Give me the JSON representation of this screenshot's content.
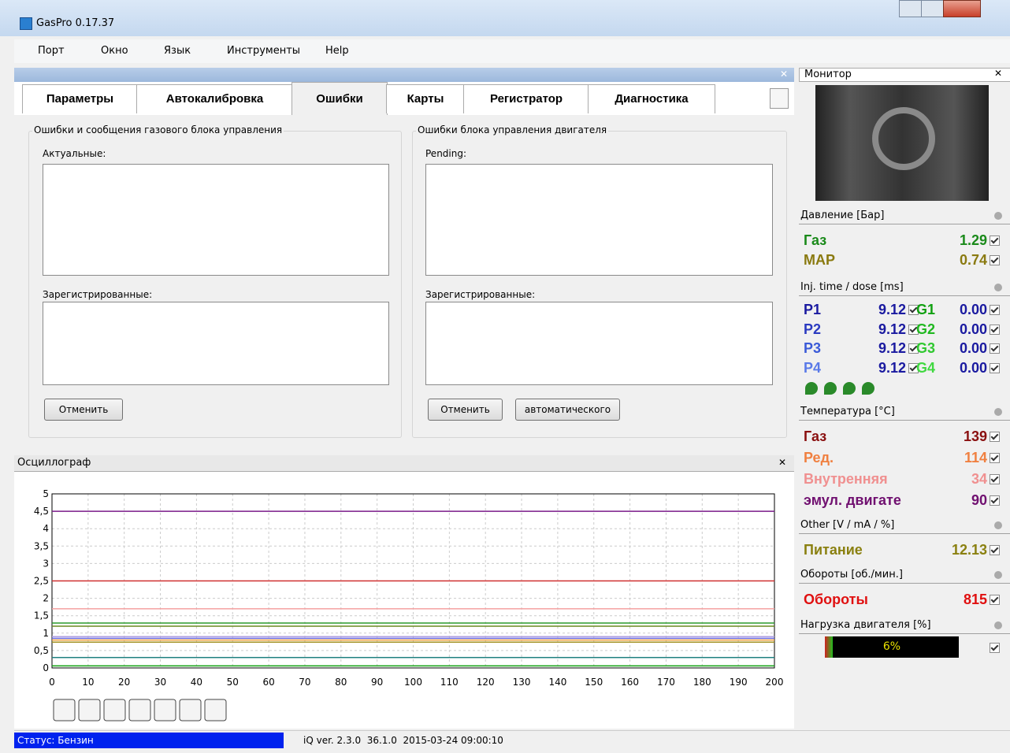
{
  "window": {
    "title": "GasPro 0.17.37"
  },
  "menu": [
    "Порт",
    "Окно",
    "Язык",
    "Инструменты",
    "Help"
  ],
  "tabs": [
    "Параметры",
    "Автокалибровка",
    "Ошибки",
    "Карты",
    "Регистратор",
    "Диагностика"
  ],
  "selected_tab": 2,
  "errors": {
    "gas": {
      "title": "Ошибки и сообщения газового блока управления",
      "current_label": "Актуальные:",
      "registered_label": "Зарегистрированные:",
      "buttons": [
        "Отменить"
      ]
    },
    "engine": {
      "title": "Ошибки блока управления двигателя",
      "current_label": "Pending:",
      "registered_label": "Зарегистрированные:",
      "buttons": [
        "Отменить",
        "автоматического"
      ]
    }
  },
  "oscilloscope": {
    "title": "Осциллограф",
    "xlim": [
      0,
      200
    ],
    "ylim": [
      0,
      5
    ],
    "xticks": [
      0,
      10,
      20,
      30,
      40,
      50,
      60,
      70,
      80,
      90,
      100,
      110,
      120,
      130,
      140,
      150,
      160,
      170,
      180,
      190,
      200
    ],
    "yticks": [
      0,
      {
        "value": 0.5,
        "label": "0,5"
      },
      1,
      {
        "value": 1.5,
        "label": "1,5"
      },
      2,
      {
        "value": 2.5,
        "label": "2,5"
      },
      3,
      {
        "value": 3.5,
        "label": "3,5"
      },
      4,
      {
        "value": 4.5,
        "label": "4,5"
      },
      5
    ],
    "lines": [
      {
        "color": "#7a1a8a",
        "value": 4.5
      },
      {
        "color": "#d03030",
        "value": 2.5
      },
      {
        "color": "#f4a0a0",
        "value": 1.7
      },
      {
        "color": "#2a9a2a",
        "value": 1.29
      },
      {
        "color": "#6a8a20",
        "value": 1.2
      },
      {
        "color": "#b0a0e0",
        "value": 0.9
      },
      {
        "color": "#6a6ae0",
        "value": 0.85
      },
      {
        "color": "#f0a040",
        "value": 0.8
      },
      {
        "color": "#a09020",
        "value": 0.74
      },
      {
        "color": "#208080",
        "value": 0.3
      },
      {
        "color": "#10a010",
        "value": 0.06
      }
    ]
  },
  "status": {
    "state": "Статус: Бензин",
    "version": "iQ ver. 2.3.0  36.1.0  2015-03-24 09:00:10"
  },
  "monitor": {
    "title": "Монитор",
    "sections": [
      {
        "title": "Давление [Бар]",
        "rows": [
          {
            "name": "Газ",
            "value": "1.29",
            "color": "#1a8a1a"
          },
          {
            "name": "MAP",
            "value": "0.74",
            "color": "#8a7a10"
          }
        ]
      },
      {
        "title": "Inj. time / dose [ms]",
        "pairs": [
          [
            {
              "name": "P1",
              "value": "9.12",
              "color": "#1a1aa0"
            },
            {
              "name": "G1",
              "value": "0.00",
              "color": "#10a010"
            }
          ],
          [
            {
              "name": "P2",
              "value": "9.12",
              "color": "#2a3ac0"
            },
            {
              "name": "G2",
              "value": "0.00",
              "color": "#20b820"
            }
          ],
          [
            {
              "name": "P3",
              "value": "9.12",
              "color": "#3a5ad8"
            },
            {
              "name": "G3",
              "value": "0.00",
              "color": "#30c830"
            }
          ],
          [
            {
              "name": "P4",
              "value": "9.12",
              "color": "#5a7ae8"
            },
            {
              "name": "G4",
              "value": "0.00",
              "color": "#40d840"
            }
          ]
        ]
      },
      {
        "title": "Температура [°C]",
        "rows": [
          {
            "name": "Газ",
            "value": "139",
            "color": "#8a1010"
          },
          {
            "name": "Ред.",
            "value": "114",
            "color": "#f08040"
          },
          {
            "name": "Внутренняя",
            "value": "34",
            "color": "#f09090"
          },
          {
            "name": "эмул. двигате",
            "value": "90",
            "color": "#701070"
          }
        ]
      },
      {
        "title": "Other [V / mA / %]",
        "rows": [
          {
            "name": "Питание",
            "value": "12.13",
            "color": "#8a8010"
          }
        ]
      },
      {
        "title": "Обороты [об./мин.]",
        "rows": [
          {
            "name": "Обороты",
            "value": "815",
            "color": "#e01010"
          }
        ]
      },
      {
        "title": "Нагрузка двигателя [%]",
        "load": 6,
        "load_label": "6%"
      }
    ]
  }
}
